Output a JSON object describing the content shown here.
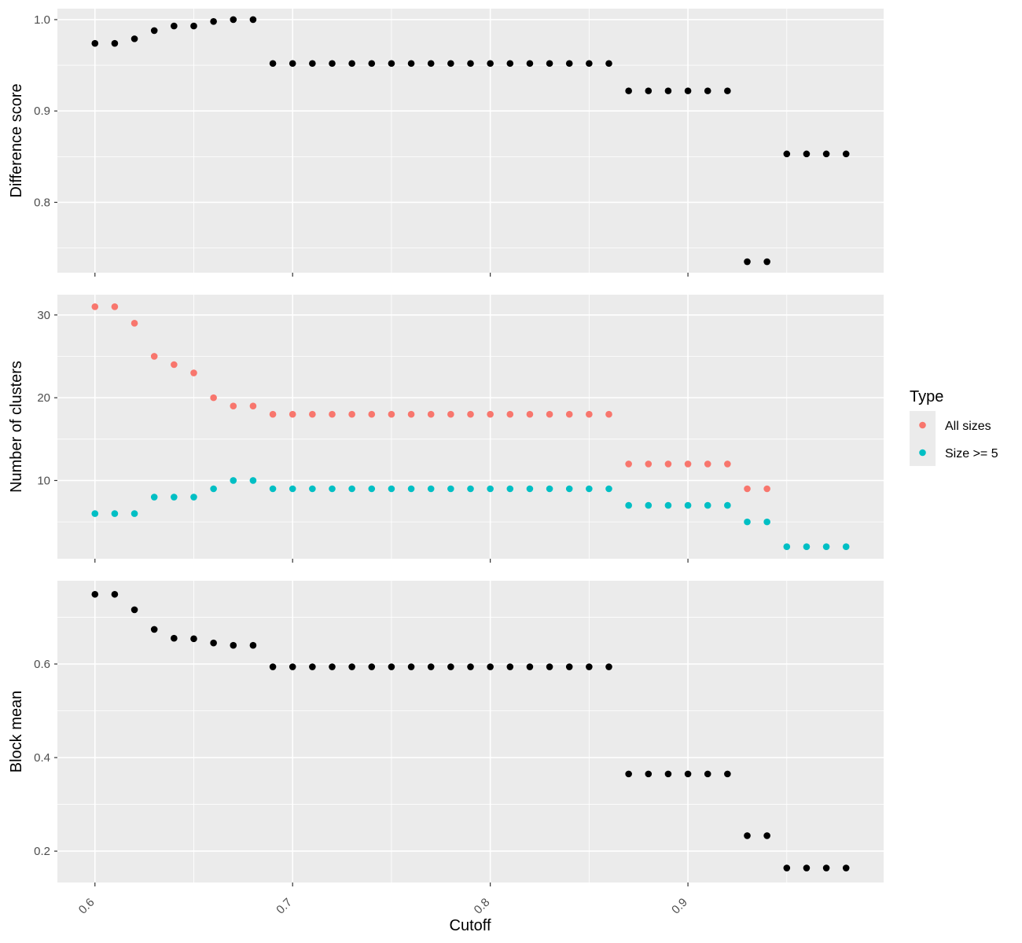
{
  "chart_data": [
    {
      "type": "scatter",
      "ylabel": "Difference score",
      "yticks": [
        0.8,
        0.9,
        1.0
      ],
      "ytick_labels": [
        "0.8",
        "0.9",
        "1.0"
      ],
      "ylim": [
        0.723,
        1.012
      ],
      "xlim": [
        0.581,
        0.999
      ],
      "grid": true,
      "series": [
        {
          "color": "#000000",
          "points": [
            [
              0.6,
              0.974
            ],
            [
              0.61,
              0.974
            ],
            [
              0.62,
              0.979
            ],
            [
              0.63,
              0.988
            ],
            [
              0.64,
              0.993
            ],
            [
              0.65,
              0.993
            ],
            [
              0.66,
              0.998
            ],
            [
              0.67,
              1.0
            ],
            [
              0.68,
              1.0
            ],
            [
              0.69,
              0.952
            ],
            [
              0.7,
              0.952
            ],
            [
              0.71,
              0.952
            ],
            [
              0.72,
              0.952
            ],
            [
              0.73,
              0.952
            ],
            [
              0.74,
              0.952
            ],
            [
              0.75,
              0.952
            ],
            [
              0.76,
              0.952
            ],
            [
              0.77,
              0.952
            ],
            [
              0.78,
              0.952
            ],
            [
              0.79,
              0.952
            ],
            [
              0.8,
              0.952
            ],
            [
              0.81,
              0.952
            ],
            [
              0.82,
              0.952
            ],
            [
              0.83,
              0.952
            ],
            [
              0.84,
              0.952
            ],
            [
              0.85,
              0.952
            ],
            [
              0.86,
              0.952
            ],
            [
              0.87,
              0.922
            ],
            [
              0.88,
              0.922
            ],
            [
              0.89,
              0.922
            ],
            [
              0.9,
              0.922
            ],
            [
              0.91,
              0.922
            ],
            [
              0.92,
              0.922
            ],
            [
              0.93,
              0.735
            ],
            [
              0.94,
              0.735
            ],
            [
              0.95,
              0.853
            ],
            [
              0.96,
              0.853
            ],
            [
              0.97,
              0.853
            ],
            [
              0.98,
              0.853
            ]
          ]
        }
      ]
    },
    {
      "type": "scatter",
      "ylabel": "Number of clusters",
      "yticks": [
        10,
        20,
        30
      ],
      "ytick_labels": [
        "10",
        "20",
        "30"
      ],
      "ylim": [
        0.55,
        32.45
      ],
      "xlim": [
        0.581,
        0.999
      ],
      "grid": true,
      "legend": {
        "title": "Type",
        "position": "right",
        "entries": [
          {
            "label": "All sizes",
            "color": "#F8766D"
          },
          {
            "label": "Size >= 5",
            "color": "#00BFC4"
          }
        ]
      },
      "series": [
        {
          "name": "All sizes",
          "color": "#F8766D",
          "points": [
            [
              0.6,
              31
            ],
            [
              0.61,
              31
            ],
            [
              0.62,
              29
            ],
            [
              0.63,
              25
            ],
            [
              0.64,
              24
            ],
            [
              0.65,
              23
            ],
            [
              0.66,
              20
            ],
            [
              0.67,
              19
            ],
            [
              0.68,
              19
            ],
            [
              0.69,
              18
            ],
            [
              0.7,
              18
            ],
            [
              0.71,
              18
            ],
            [
              0.72,
              18
            ],
            [
              0.73,
              18
            ],
            [
              0.74,
              18
            ],
            [
              0.75,
              18
            ],
            [
              0.76,
              18
            ],
            [
              0.77,
              18
            ],
            [
              0.78,
              18
            ],
            [
              0.79,
              18
            ],
            [
              0.8,
              18
            ],
            [
              0.81,
              18
            ],
            [
              0.82,
              18
            ],
            [
              0.83,
              18
            ],
            [
              0.84,
              18
            ],
            [
              0.85,
              18
            ],
            [
              0.86,
              18
            ],
            [
              0.87,
              12
            ],
            [
              0.88,
              12
            ],
            [
              0.89,
              12
            ],
            [
              0.9,
              12
            ],
            [
              0.91,
              12
            ],
            [
              0.92,
              12
            ],
            [
              0.93,
              9
            ],
            [
              0.94,
              9
            ]
          ]
        },
        {
          "name": "Size >= 5",
          "color": "#00BFC4",
          "points": [
            [
              0.6,
              6
            ],
            [
              0.61,
              6
            ],
            [
              0.62,
              6
            ],
            [
              0.63,
              8
            ],
            [
              0.64,
              8
            ],
            [
              0.65,
              8
            ],
            [
              0.66,
              9
            ],
            [
              0.67,
              10
            ],
            [
              0.68,
              10
            ],
            [
              0.69,
              9
            ],
            [
              0.7,
              9
            ],
            [
              0.71,
              9
            ],
            [
              0.72,
              9
            ],
            [
              0.73,
              9
            ],
            [
              0.74,
              9
            ],
            [
              0.75,
              9
            ],
            [
              0.76,
              9
            ],
            [
              0.77,
              9
            ],
            [
              0.78,
              9
            ],
            [
              0.79,
              9
            ],
            [
              0.8,
              9
            ],
            [
              0.81,
              9
            ],
            [
              0.82,
              9
            ],
            [
              0.83,
              9
            ],
            [
              0.84,
              9
            ],
            [
              0.85,
              9
            ],
            [
              0.86,
              9
            ],
            [
              0.87,
              7
            ],
            [
              0.88,
              7
            ],
            [
              0.89,
              7
            ],
            [
              0.9,
              7
            ],
            [
              0.91,
              7
            ],
            [
              0.92,
              7
            ],
            [
              0.93,
              5
            ],
            [
              0.94,
              5
            ],
            [
              0.95,
              2
            ],
            [
              0.96,
              2
            ],
            [
              0.97,
              2
            ],
            [
              0.98,
              2
            ]
          ]
        }
      ]
    },
    {
      "type": "scatter",
      "ylabel": "Block mean",
      "yticks": [
        0.2,
        0.4,
        0.6
      ],
      "ytick_labels": [
        "0.2",
        "0.4",
        "0.6"
      ],
      "ylim": [
        0.133,
        0.778
      ],
      "xlim": [
        0.581,
        0.999
      ],
      "xlabel": "Cutoff",
      "xticks": [
        0.6,
        0.7,
        0.8,
        0.9
      ],
      "xtick_labels": [
        "0.6",
        "0.7",
        "0.8",
        "0.9"
      ],
      "grid": true,
      "series": [
        {
          "color": "#000000",
          "points": [
            [
              0.6,
              0.749
            ],
            [
              0.61,
              0.749
            ],
            [
              0.62,
              0.716
            ],
            [
              0.63,
              0.674
            ],
            [
              0.64,
              0.655
            ],
            [
              0.65,
              0.654
            ],
            [
              0.66,
              0.645
            ],
            [
              0.67,
              0.64
            ],
            [
              0.68,
              0.64
            ],
            [
              0.69,
              0.594
            ],
            [
              0.7,
              0.594
            ],
            [
              0.71,
              0.594
            ],
            [
              0.72,
              0.594
            ],
            [
              0.73,
              0.594
            ],
            [
              0.74,
              0.594
            ],
            [
              0.75,
              0.594
            ],
            [
              0.76,
              0.594
            ],
            [
              0.77,
              0.594
            ],
            [
              0.78,
              0.594
            ],
            [
              0.79,
              0.594
            ],
            [
              0.8,
              0.594
            ],
            [
              0.81,
              0.594
            ],
            [
              0.82,
              0.594
            ],
            [
              0.83,
              0.594
            ],
            [
              0.84,
              0.594
            ],
            [
              0.85,
              0.594
            ],
            [
              0.86,
              0.594
            ],
            [
              0.87,
              0.365
            ],
            [
              0.88,
              0.365
            ],
            [
              0.89,
              0.365
            ],
            [
              0.9,
              0.365
            ],
            [
              0.91,
              0.365
            ],
            [
              0.92,
              0.365
            ],
            [
              0.93,
              0.233
            ],
            [
              0.94,
              0.233
            ],
            [
              0.95,
              0.164
            ],
            [
              0.96,
              0.164
            ],
            [
              0.97,
              0.164
            ],
            [
              0.98,
              0.164
            ]
          ]
        }
      ]
    }
  ]
}
